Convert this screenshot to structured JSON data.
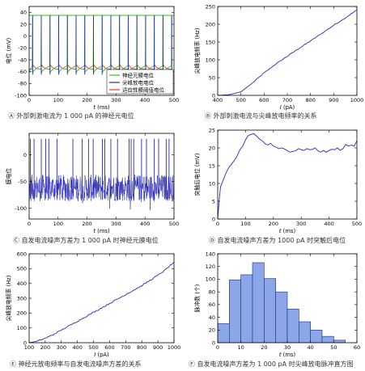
{
  "chart_data": [
    {
      "id": "A",
      "type": "line",
      "ylabel": "电位 (mV)",
      "xlabel_var": "t",
      "xlabel_unit": " (ms)",
      "xlim": [
        0,
        500
      ],
      "ylim": [
        -100,
        50
      ],
      "xticks": [
        0,
        100,
        200,
        300,
        400,
        500
      ],
      "yticks": [
        -100,
        -80,
        -60,
        -40,
        -20,
        0,
        20,
        40
      ],
      "spike_times": [
        12,
        42,
        72,
        102,
        132,
        162,
        192,
        222,
        252,
        282,
        312,
        342,
        372,
        402,
        432,
        462,
        492
      ],
      "spike_peak": 35,
      "reset": -62,
      "threshold_peak": -47,
      "threshold_base": -56,
      "legend": [
        "神经元膜电位",
        "尖峰放电电位",
        "适应性膜阈值电位"
      ],
      "legend_position": "bottom-right",
      "series_colors": [
        "#33bb33",
        "#2a2ab4",
        "#ee3333"
      ],
      "caption": "Ⓐ 外部刺激电流为 1 000 pA 的神经元电位"
    },
    {
      "id": "B",
      "type": "line",
      "ylabel": "尖峰放电频率 (Hz)",
      "xlabel_var": "I",
      "xlabel_unit": " (pA)",
      "xlim": [
        400,
        1000
      ],
      "ylim": [
        0,
        250
      ],
      "xticks": [
        400,
        500,
        600,
        700,
        800,
        900,
        1000
      ],
      "yticks": [
        0,
        50,
        100,
        150,
        200,
        250
      ],
      "x": [
        400,
        450,
        500,
        550,
        600,
        650,
        700,
        750,
        800,
        850,
        900,
        950,
        1000
      ],
      "y": [
        0,
        2,
        10,
        35,
        63,
        88,
        110,
        132,
        153,
        175,
        197,
        218,
        240
      ],
      "color": "#2a2ab4",
      "caption": "Ⓑ 外部刺激电流与尖峰放电频率的关系"
    },
    {
      "id": "C",
      "type": "line",
      "ylabel": "膜电位",
      "xlabel_var": "t",
      "xlabel_unit": " (ms)",
      "xlim": [
        0,
        500
      ],
      "ylim": [
        -120,
        40
      ],
      "xticks": [
        0,
        100,
        200,
        300,
        400,
        500
      ],
      "yticks": [
        -100,
        -50,
        0
      ],
      "spike_times": [
        4,
        17,
        42,
        57,
        68,
        96,
        151,
        183,
        205,
        221,
        253,
        261,
        282,
        305,
        345,
        352,
        361,
        388,
        405,
        432,
        447,
        473,
        483
      ],
      "spike_peak": 30,
      "noise_center": -62,
      "noise_amplitude": 25,
      "color": "#2a2ab4",
      "caption": "Ⓒ 自发电流噪声方差为 1 000 pA 时神经元膜电位"
    },
    {
      "id": "D",
      "type": "line",
      "ylabel": "突触后电位 (mV)",
      "xlabel_var": "t",
      "xlabel_unit": " (ms)",
      "xlim": [
        0,
        500
      ],
      "ylim": [
        0,
        25
      ],
      "xticks": [
        0,
        100,
        200,
        300,
        400,
        500
      ],
      "yticks": [
        0,
        5,
        10,
        15,
        20,
        25
      ],
      "x": [
        0,
        5,
        10,
        20,
        30,
        40,
        50,
        60,
        70,
        80,
        90,
        100,
        110,
        120,
        130,
        140,
        150,
        160,
        170,
        180,
        190,
        200,
        210,
        220,
        230,
        240,
        250,
        260,
        270,
        280,
        290,
        300,
        310,
        320,
        330,
        340,
        350,
        360,
        370,
        380,
        390,
        400,
        410,
        420,
        430,
        440,
        450,
        460,
        470,
        480,
        490,
        500
      ],
      "y": [
        0,
        5,
        9,
        11,
        13,
        14.5,
        15.5,
        16.5,
        17.8,
        19.5,
        20.5,
        22.3,
        23.5,
        23.8,
        24,
        23.3,
        22.5,
        22,
        21.2,
        20.8,
        21.3,
        20.5,
        20.2,
        19.8,
        20,
        19.7,
        19.2,
        18.8,
        19,
        19.2,
        19.8,
        19.5,
        19.3,
        19.8,
        19.5,
        19.6,
        20,
        19.2,
        18.8,
        19.3,
        18.8,
        19.3,
        19.6,
        19.5,
        20,
        19.3,
        19.8,
        21,
        20.5,
        20.8,
        20.5,
        22
      ],
      "color": "#2a2ab4",
      "caption": "Ⓓ 自发电流噪声方差为 1000 pA 时突触后电位"
    },
    {
      "id": "E",
      "type": "line",
      "ylabel": "尖峰放电频率 (Hz)",
      "xlabel_var": "I",
      "xlabel_unit": " (pA)",
      "xlim": [
        100,
        1000
      ],
      "ylim": [
        0,
        600
      ],
      "xticks": [
        100,
        200,
        300,
        400,
        500,
        600,
        700,
        800,
        900,
        1000
      ],
      "yticks": [
        0,
        100,
        200,
        300,
        400,
        500,
        600
      ],
      "x": [
        100,
        150,
        200,
        250,
        300,
        350,
        400,
        450,
        500,
        550,
        600,
        650,
        700,
        750,
        800,
        850,
        900,
        950,
        1000
      ],
      "y": [
        0,
        10,
        30,
        55,
        85,
        115,
        145,
        175,
        205,
        235,
        265,
        295,
        325,
        355,
        385,
        420,
        455,
        495,
        545
      ],
      "color": "#2a2ab4",
      "caption": "Ⓔ 神经元放电频率与自发电流噪声方差的关系"
    },
    {
      "id": "F",
      "type": "bar",
      "ylabel": "脉冲数 (个)",
      "xlabel_var": "t",
      "xlabel_unit": " (ms)",
      "xlim": [
        0,
        60
      ],
      "ylim": [
        0,
        140
      ],
      "xticks": [
        0,
        10,
        20,
        30,
        40,
        50,
        60
      ],
      "yticks": [
        0,
        20,
        40,
        60,
        80,
        100,
        120,
        140
      ],
      "bin_width": 5,
      "bin_starts": [
        0,
        5,
        10,
        15,
        20,
        25,
        30,
        35,
        40,
        45,
        50
      ],
      "values": [
        30,
        99,
        107,
        126,
        101,
        80,
        53,
        33,
        20,
        10,
        4
      ],
      "color": "#8ba7e8",
      "edge_color": "#1a2a88",
      "caption": "Ⓕ 自发电流噪声方差为 1 000 pA 时尖峰放电脉冲直方图"
    }
  ]
}
